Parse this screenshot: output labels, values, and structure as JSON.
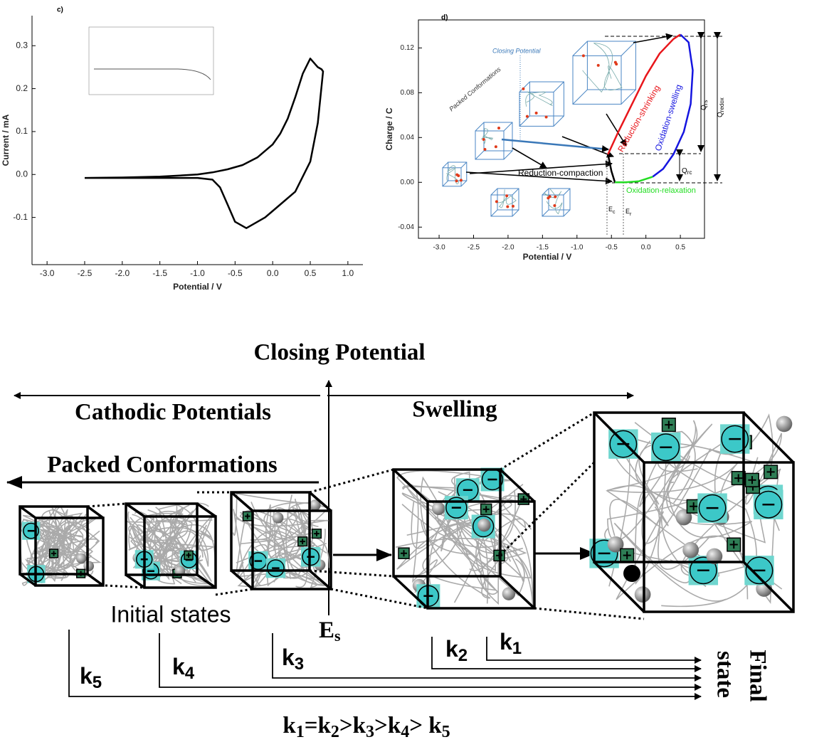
{
  "chart_data": [
    {
      "type": "line",
      "panel": "c)",
      "x_label": "Potential / V",
      "y_label": "Current / mA",
      "x": [
        -2.5,
        -2.0,
        -1.5,
        -1.0,
        -0.8,
        -0.6,
        -0.4,
        -0.2,
        0.0,
        0.1,
        0.2,
        0.3,
        0.4,
        0.5,
        0.6,
        0.65,
        0.67,
        0.6,
        0.5,
        0.3,
        0.1,
        -0.1,
        -0.35,
        -0.5,
        -0.6,
        -0.7,
        -0.8,
        -1.0,
        -1.5,
        -2.0,
        -2.5
      ],
      "values": [
        -0.008,
        -0.007,
        -0.005,
        0.0,
        0.005,
        0.012,
        0.022,
        0.04,
        0.07,
        0.095,
        0.13,
        0.18,
        0.235,
        0.27,
        0.25,
        0.245,
        0.24,
        0.12,
        0.03,
        -0.04,
        -0.07,
        -0.1,
        -0.125,
        -0.11,
        -0.07,
        -0.03,
        -0.012,
        -0.008,
        -0.008,
        -0.008,
        -0.008
      ],
      "color": "#000000",
      "xlim": [
        -3.2,
        1.2
      ],
      "ylim": [
        -0.21,
        0.37
      ],
      "xticks": [
        {
          "value": -3.0,
          "label": "-3.0"
        },
        -2.5,
        {
          "value": -2.0,
          "label": "-2.0"
        },
        -1.5,
        {
          "value": -1.0,
          "label": "-1.0"
        },
        -0.5,
        {
          "value": 0.0,
          "label": "0.0"
        },
        0.5,
        {
          "value": 1.0,
          "label": "1.0"
        }
      ],
      "yticks": [
        -0.1,
        {
          "value": 0.0,
          "label": "0.0"
        },
        0.1,
        0.2,
        0.3
      ]
    },
    {
      "type": "line",
      "panel": "d)",
      "x_label": "Potential / V",
      "y_label": "Charge / C",
      "series": [
        {
          "name": "Reduction-compaction",
          "color": "#000000",
          "x": [
            -0.45,
            -0.5,
            -0.55
          ],
          "values": [
            0.0,
            0.01,
            0.025
          ]
        },
        {
          "name": "Reduction-shrinking",
          "color": "#e8161b",
          "x": [
            -0.55,
            -0.4,
            -0.2,
            0.0,
            0.2,
            0.4,
            0.5
          ],
          "values": [
            0.025,
            0.045,
            0.07,
            0.095,
            0.115,
            0.128,
            0.132
          ]
        },
        {
          "name": "Oxidation-swelling",
          "color": "#1515e0",
          "x": [
            0.5,
            0.62,
            0.68,
            0.65,
            0.55,
            0.4,
            0.25,
            0.1
          ],
          "values": [
            0.132,
            0.125,
            0.1,
            0.07,
            0.045,
            0.025,
            0.012,
            0.005
          ]
        },
        {
          "name": "Oxidation-relaxation",
          "color": "#22dd22",
          "x": [
            0.1,
            -0.1,
            -0.3,
            -0.45
          ],
          "values": [
            0.005,
            0.001,
            0.0,
            0.0
          ]
        }
      ],
      "xlim": [
        -3.3,
        0.85
      ],
      "ylim": [
        -0.05,
        0.145
      ],
      "xticks": [
        {
          "value": -3.0,
          "label": "-3.0"
        },
        -2.5,
        {
          "value": -2.0,
          "label": "-2.0"
        },
        -1.5,
        {
          "value": -1.0,
          "label": "-1.0"
        },
        -0.5,
        {
          "value": 0.0,
          "label": "0.0"
        },
        0.5
      ],
      "yticks": [
        -0.04,
        {
          "value": 0.0,
          "label": "0.00"
        },
        0.04,
        0.08,
        0.12
      ],
      "annotations": {
        "closing": "Closing Potential",
        "packed": "Packed Conformations",
        "q_rs": [
          "Q",
          "rs"
        ],
        "q_redox": [
          "Q",
          "redox"
        ],
        "q_rc": [
          "Q",
          "rc"
        ],
        "e_c": [
          "E",
          "c"
        ],
        "e_r": [
          "E",
          "r"
        ]
      }
    }
  ],
  "diagram": {
    "closing": "Closing Potential",
    "cathodic": "Cathodic Potentials",
    "swelling": "Swelling",
    "packed": "Packed Conformations",
    "initial": "Initial states",
    "es": [
      "E",
      "s"
    ],
    "rates": [
      [
        "k",
        "1"
      ],
      [
        "k",
        "2"
      ],
      [
        "k",
        "3"
      ],
      [
        "k",
        "4"
      ],
      [
        "k",
        "5"
      ]
    ],
    "final": [
      "Final",
      "state"
    ],
    "equation": [
      "k",
      "1",
      "=k",
      "2",
      ">k",
      "3",
      ">k",
      "4",
      "> k",
      "5"
    ]
  }
}
